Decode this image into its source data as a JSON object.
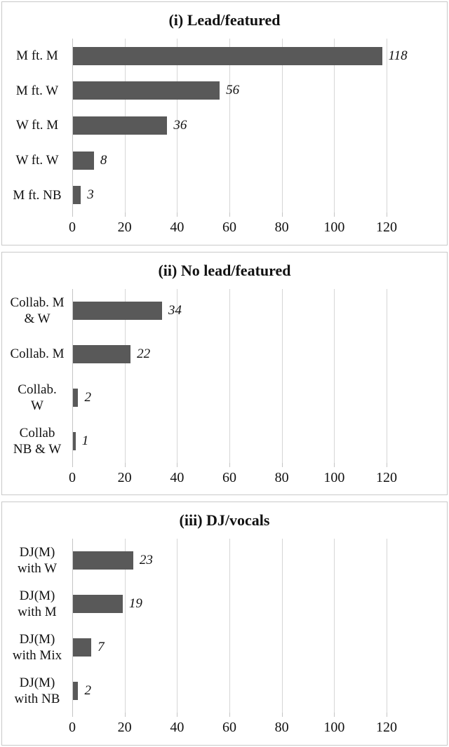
{
  "style": {
    "bar_color": "#595959",
    "gridline_color": "#d6d6d6",
    "panel_border_color": "#c9c9c9",
    "text_color": "#111111",
    "background": "#ffffff"
  },
  "chart_data": [
    {
      "type": "bar",
      "orientation": "horizontal",
      "title": "(i) Lead/featured",
      "categories": [
        "M ft. M",
        "M ft. W",
        "W ft. M",
        "W ft. W",
        "M ft. NB"
      ],
      "values": [
        118,
        56,
        36,
        8,
        3
      ],
      "data_labels": [
        "118",
        "56",
        "36",
        "8",
        "3"
      ],
      "data_label_style": "italic",
      "xlabel": "",
      "ylabel": "",
      "xlim": [
        0,
        120
      ],
      "xticks": [
        0,
        20,
        40,
        60,
        80,
        100,
        120
      ],
      "grid": true,
      "legend": false,
      "bar_color": "#595959"
    },
    {
      "type": "bar",
      "orientation": "horizontal",
      "title": "(ii) No lead/featured",
      "categories": [
        "Collab. M\n& W",
        "Collab. M",
        "Collab.\nW",
        "Collab\nNB & W"
      ],
      "values": [
        34,
        22,
        2,
        1
      ],
      "data_labels": [
        "34",
        "22",
        "2",
        "1"
      ],
      "data_label_style": "italic",
      "xlabel": "",
      "ylabel": "",
      "xlim": [
        0,
        120
      ],
      "xticks": [
        0,
        20,
        40,
        60,
        80,
        100,
        120
      ],
      "grid": true,
      "legend": false,
      "bar_color": "#595959"
    },
    {
      "type": "bar",
      "orientation": "horizontal",
      "title": "(iii) DJ/vocals",
      "categories": [
        "DJ(M)\nwith W",
        "DJ(M)\nwith M",
        "DJ(M)\nwith Mix",
        "DJ(M)\nwith NB"
      ],
      "values": [
        23,
        19,
        7,
        2
      ],
      "data_labels": [
        "23",
        "19",
        "7",
        "2"
      ],
      "data_label_style": "italic",
      "xlabel": "",
      "ylabel": "",
      "xlim": [
        0,
        120
      ],
      "xticks": [
        0,
        20,
        40,
        60,
        80,
        100,
        120
      ],
      "grid": true,
      "legend": false,
      "bar_color": "#595959"
    }
  ]
}
